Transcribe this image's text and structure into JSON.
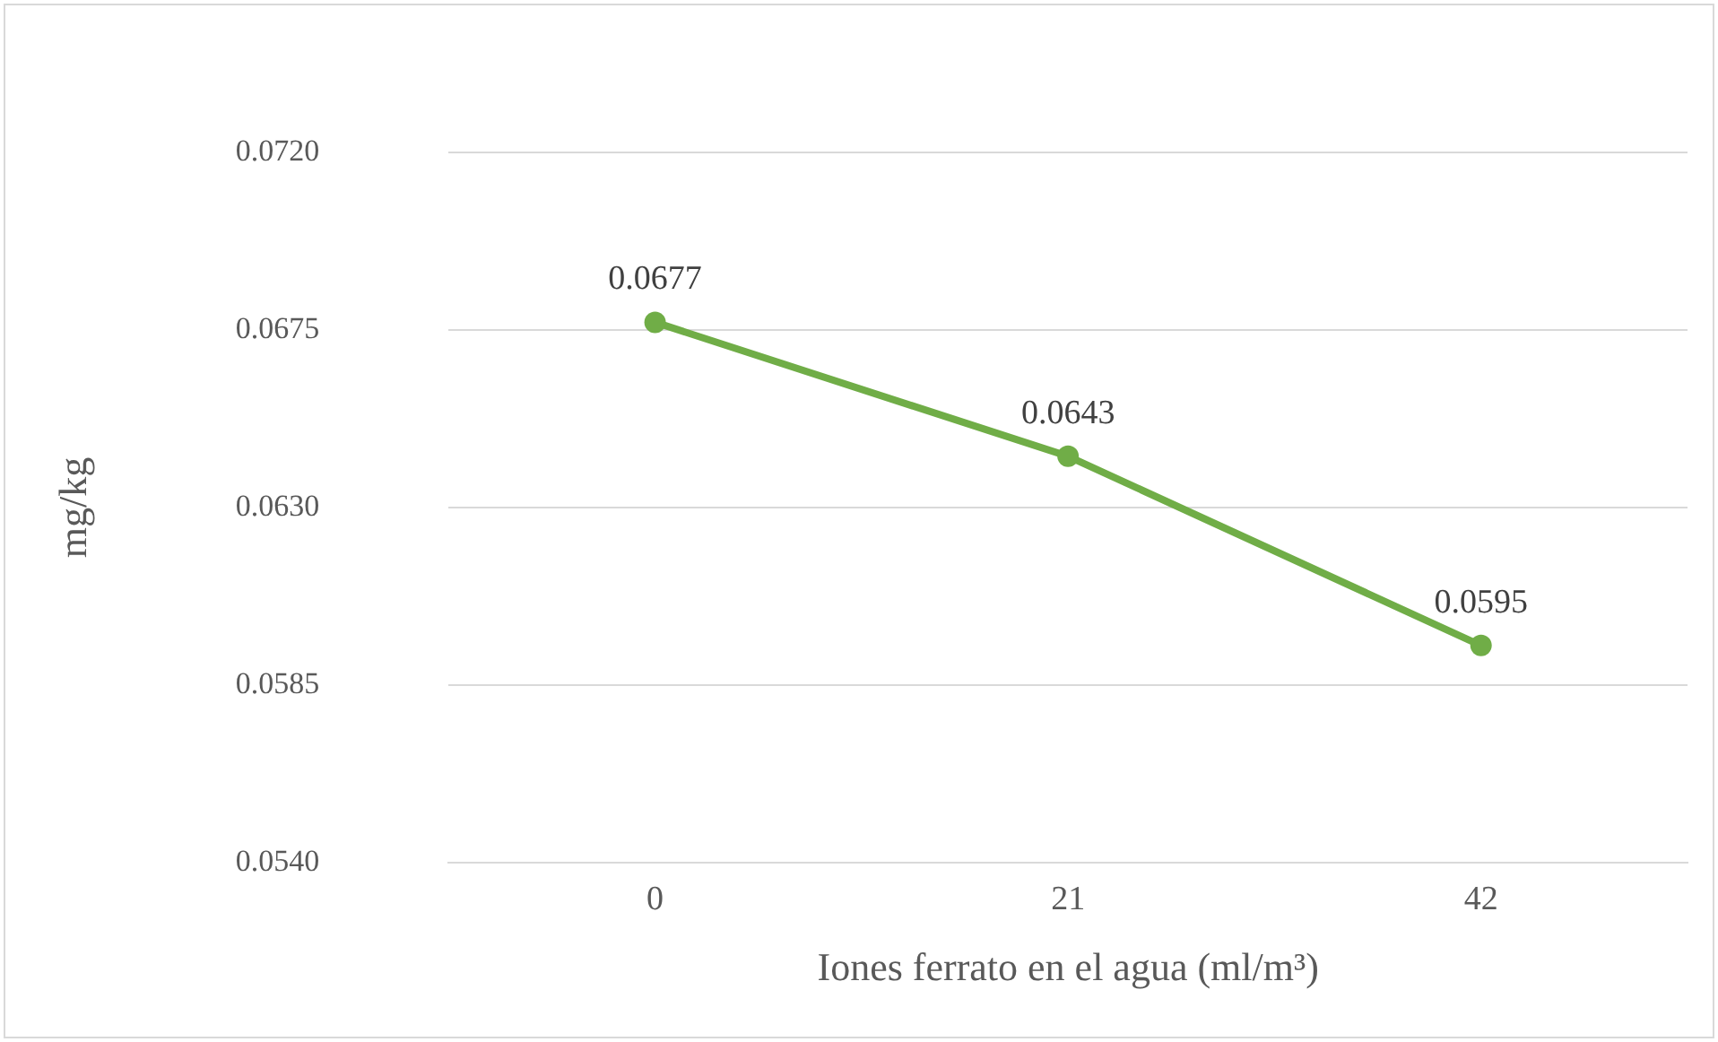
{
  "chart_data": {
    "type": "line",
    "xlabel": "Iones ferrato en el agua (ml/m³)",
    "ylabel": "mg/kg",
    "categories": [
      "0",
      "21",
      "42"
    ],
    "series": [
      {
        "color": "#70ad47",
        "values": [
          0.0677,
          0.0643,
          0.0595
        ]
      }
    ],
    "ylim": [
      0.054,
      0.072
    ],
    "yticks": [
      {
        "value": 0.054,
        "label": "0.0540"
      },
      {
        "value": 0.0585,
        "label": "0.0585"
      },
      {
        "value": 0.063,
        "label": "0.0630"
      },
      {
        "value": 0.0675,
        "label": "0.0675"
      },
      {
        "value": 0.072,
        "label": "0.0720"
      }
    ],
    "grid": "y",
    "legend": false,
    "marker": "circle",
    "line_style": "solid",
    "data_labels": true
  }
}
